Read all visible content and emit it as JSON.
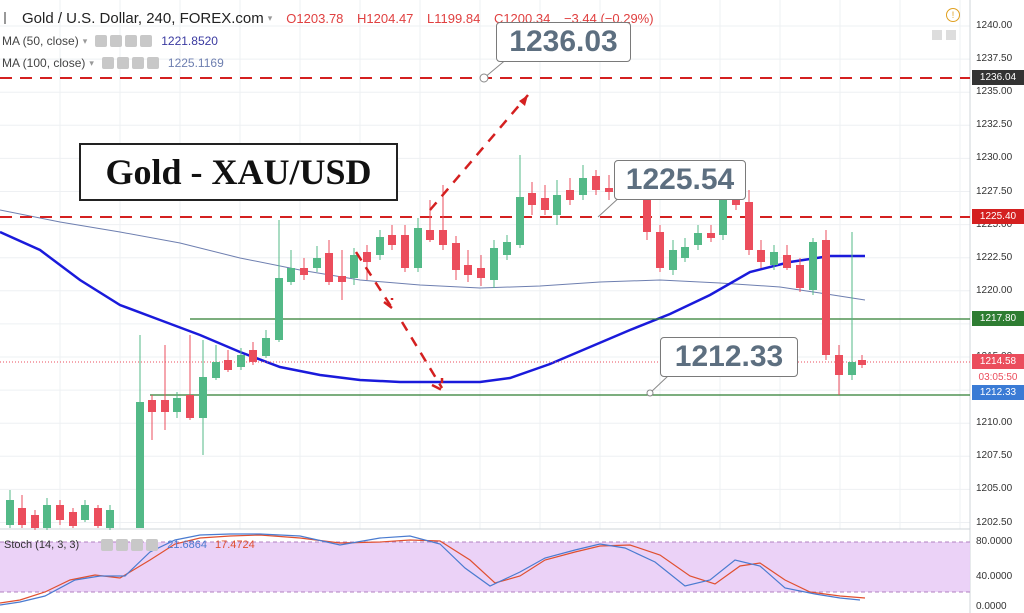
{
  "header": {
    "symbol": "Gold / U.S. Dollar, 240, FOREX.com",
    "open": "O1203.78",
    "high": "H1204.47",
    "low": "L1199.84",
    "close": "C1200.34",
    "change": "−3.44 (−0.29%)"
  },
  "indicators": {
    "ma50": {
      "label": "MA (50, close)",
      "value": "1221.8520"
    },
    "ma100": {
      "label": "MA (100, close)",
      "value": "1225.1169"
    },
    "stoch": {
      "label": "Stoch (14, 3, 3)",
      "k": "21.6864",
      "d": "17.4724"
    }
  },
  "title_box": "Gold - XAU/USD",
  "callouts": {
    "c1": "1236.03",
    "c2": "1225.54",
    "c3": "1212.33"
  },
  "price_axis": [
    "1240.00",
    "1237.50",
    "1235.00",
    "1232.50",
    "1230.00",
    "1227.50",
    "1225.00",
    "1222.50",
    "1220.00",
    "1217.50",
    "1215.00",
    "1212.50",
    "1210.00",
    "1207.50",
    "1205.00",
    "1202.50"
  ],
  "stoch_axis": [
    "80.0000",
    "40.0000",
    "0.0000"
  ],
  "price_tags": {
    "t1236": "1236.04",
    "t1225": "1225.40",
    "t1217": "1217.80",
    "t1214": "1214.58",
    "countdown": "03:05:50",
    "t1212": "1212.33"
  },
  "colors": {
    "bull": "#53b987",
    "bear": "#eb4d5c",
    "ma50": "#1a1adb",
    "ma100": "#6e7fb0",
    "resistance": "#d42020",
    "support": "#2e7d32",
    "stoch_fill": "#e6c8f5"
  }
}
